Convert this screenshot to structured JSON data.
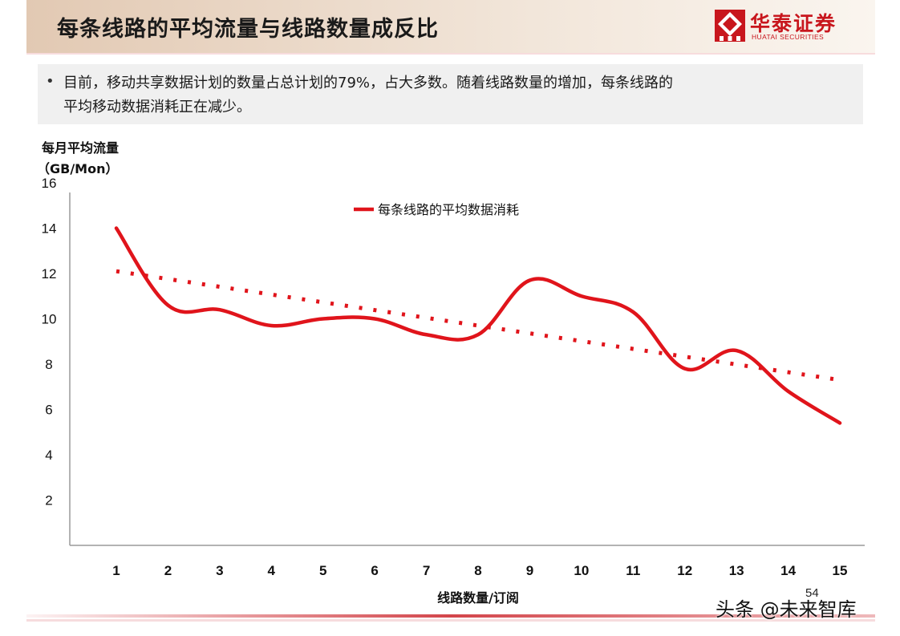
{
  "header": {
    "title": "每条线路的平均流量与线路数量成反比"
  },
  "logo": {
    "cn": "华泰证券",
    "en": "HUATAI SECURITIES"
  },
  "bullet": {
    "line1": "目前，移动共享数据计划的数量占总计划的79%，占大多数。随着线路数量的增加，每条线路的",
    "line2": "平均移动数据消耗正在减少。"
  },
  "chart_data": {
    "type": "line",
    "ylabel_line1": "每月平均流量",
    "ylabel_line2": "（GB/Mon）",
    "xlabel": "线路数量/订阅",
    "ylim": [
      0,
      16
    ],
    "yticks": [
      "16",
      "14",
      "12",
      "10",
      "8",
      "6",
      "4",
      "2"
    ],
    "categories": [
      "1",
      "2",
      "3",
      "4",
      "5",
      "6",
      "7",
      "8",
      "9",
      "10",
      "11",
      "12",
      "13",
      "14",
      "15"
    ],
    "series": [
      {
        "name": "每条线路的平均数据消耗",
        "values": [
          14.0,
          10.6,
          10.4,
          9.7,
          10.0,
          10.0,
          9.3,
          9.3,
          11.7,
          11.0,
          10.3,
          7.8,
          8.6,
          6.8,
          5.4
        ],
        "color": "#e0141b"
      }
    ],
    "trendline": {
      "from": 12.1,
      "to": 7.3,
      "style": "dotted",
      "color": "#e0141b"
    },
    "legend_position": "top-center",
    "grid": false
  },
  "footer": {
    "page": "54",
    "watermark": "头条 @未来智库"
  }
}
